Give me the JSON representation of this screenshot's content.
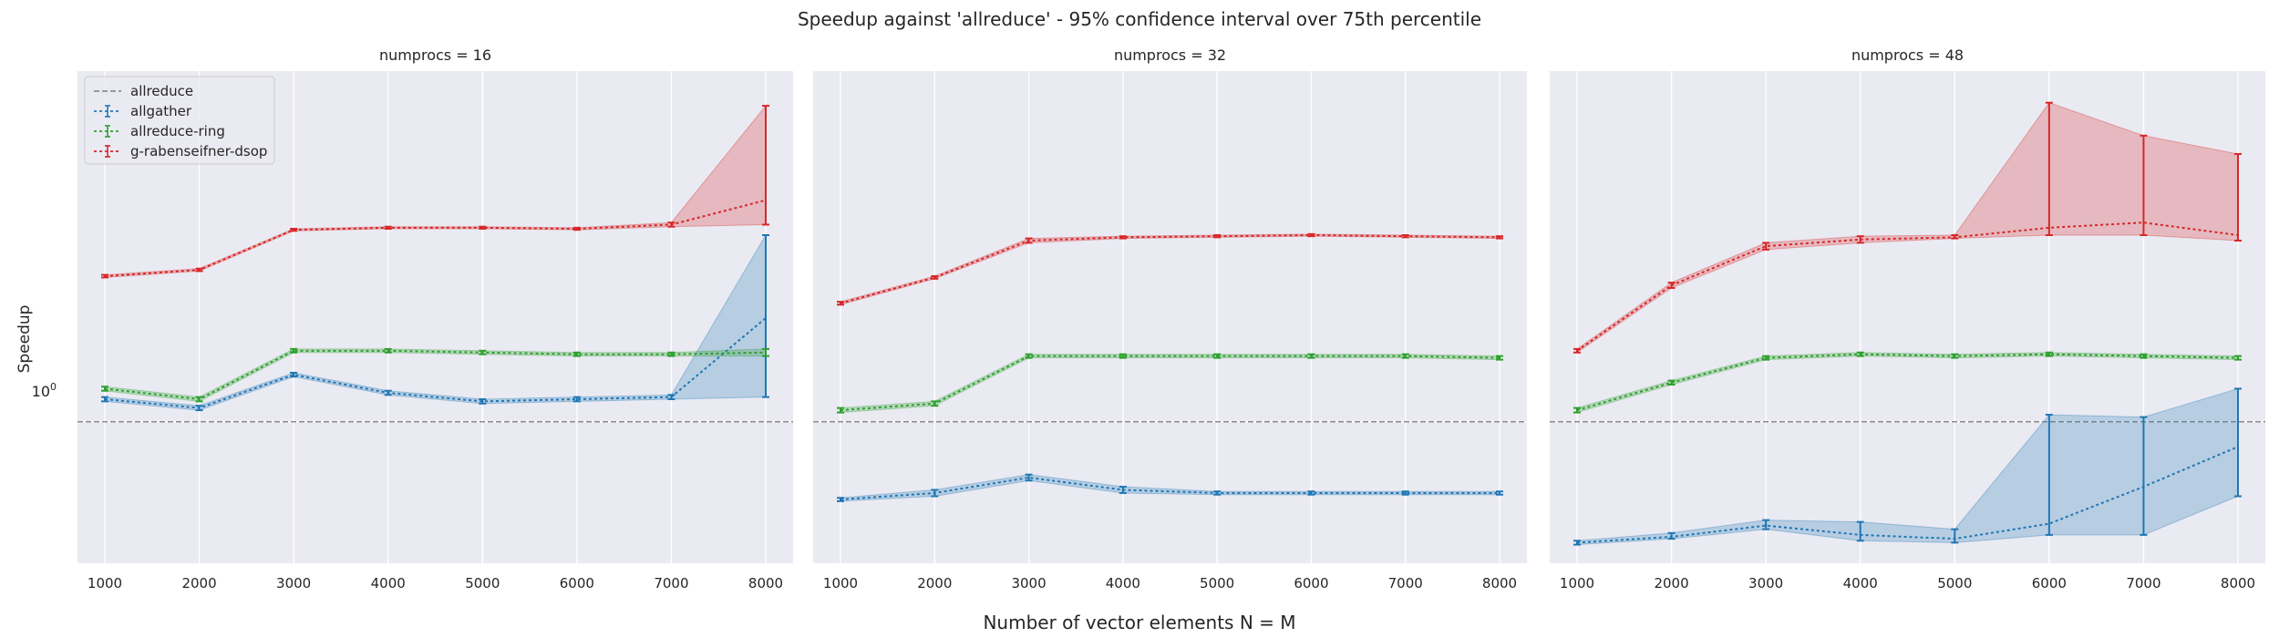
{
  "suptitle": "Speedup against 'allreduce' - 95% confidence interval over 75th percentile",
  "ylabel": "Speedup",
  "xlabel": "Number of vector elements N = M",
  "ytick_label": "10",
  "ytick_exponent": "0",
  "colors": {
    "background": "#eaeaf2",
    "grid": "#ffffff",
    "baseline": "#8c8c8c",
    "allgather": "#1f77b4",
    "allreduce-ring": "#2ca02c",
    "g-rabenseifner-dsop": "#d62728"
  },
  "legend": {
    "location": "upper left",
    "entries": [
      "allreduce",
      "allgather",
      "allreduce-ring",
      "g-rabenseifner-dsop"
    ]
  },
  "chart_data": [
    {
      "type": "line",
      "title": "numprocs = 16",
      "x": [
        1000,
        2000,
        3000,
        4000,
        5000,
        6000,
        7000,
        8000
      ],
      "yscale": "log",
      "ylim": [
        0.55,
        4.4
      ],
      "baseline": {
        "name": "allreduce",
        "value": 1.0
      },
      "series": [
        {
          "name": "allgather",
          "values": [
            1.1,
            1.06,
            1.22,
            1.13,
            1.09,
            1.1,
            1.11,
            1.55
          ],
          "ci_low": [
            1.09,
            1.05,
            1.21,
            1.12,
            1.08,
            1.09,
            1.1,
            1.11
          ],
          "ci_high": [
            1.11,
            1.07,
            1.23,
            1.14,
            1.1,
            1.11,
            1.12,
            2.2
          ]
        },
        {
          "name": "allreduce-ring",
          "values": [
            1.15,
            1.1,
            1.35,
            1.35,
            1.34,
            1.33,
            1.33,
            1.34
          ],
          "ci_low": [
            1.14,
            1.09,
            1.34,
            1.34,
            1.33,
            1.32,
            1.32,
            1.32
          ],
          "ci_high": [
            1.16,
            1.11,
            1.36,
            1.36,
            1.35,
            1.34,
            1.34,
            1.36
          ]
        },
        {
          "name": "g-rabenseifner-dsop",
          "values": [
            1.85,
            1.9,
            2.25,
            2.27,
            2.27,
            2.26,
            2.3,
            2.55
          ],
          "ci_low": [
            1.84,
            1.89,
            2.24,
            2.26,
            2.26,
            2.25,
            2.28,
            2.3
          ],
          "ci_high": [
            1.86,
            1.91,
            2.26,
            2.28,
            2.28,
            2.27,
            2.32,
            3.8
          ]
        }
      ]
    },
    {
      "type": "line",
      "title": "numprocs = 32",
      "x": [
        1000,
        2000,
        3000,
        4000,
        5000,
        6000,
        7000,
        8000
      ],
      "yscale": "log",
      "ylim": [
        0.55,
        4.4
      ],
      "baseline": {
        "name": "allreduce",
        "value": 1.0
      },
      "series": [
        {
          "name": "allgather",
          "values": [
            0.72,
            0.74,
            0.79,
            0.75,
            0.74,
            0.74,
            0.74,
            0.74
          ],
          "ci_low": [
            0.715,
            0.73,
            0.78,
            0.74,
            0.735,
            0.735,
            0.735,
            0.735
          ],
          "ci_high": [
            0.725,
            0.75,
            0.8,
            0.76,
            0.745,
            0.745,
            0.745,
            0.745
          ]
        },
        {
          "name": "allreduce-ring",
          "values": [
            1.05,
            1.08,
            1.32,
            1.32,
            1.32,
            1.32,
            1.32,
            1.31
          ],
          "ci_low": [
            1.04,
            1.07,
            1.31,
            1.31,
            1.31,
            1.31,
            1.31,
            1.3
          ],
          "ci_high": [
            1.06,
            1.09,
            1.33,
            1.33,
            1.33,
            1.33,
            1.33,
            1.32
          ]
        },
        {
          "name": "g-rabenseifner-dsop",
          "values": [
            1.65,
            1.84,
            2.15,
            2.18,
            2.19,
            2.2,
            2.19,
            2.18
          ],
          "ci_low": [
            1.64,
            1.83,
            2.13,
            2.17,
            2.18,
            2.19,
            2.18,
            2.17
          ],
          "ci_high": [
            1.66,
            1.85,
            2.17,
            2.19,
            2.2,
            2.21,
            2.2,
            2.19
          ]
        }
      ]
    },
    {
      "type": "line",
      "title": "numprocs = 48",
      "x": [
        1000,
        2000,
        3000,
        4000,
        5000,
        6000,
        7000,
        8000
      ],
      "yscale": "log",
      "ylim": [
        0.55,
        4.4
      ],
      "baseline": {
        "name": "allreduce",
        "value": 1.0
      },
      "series": [
        {
          "name": "allgather",
          "values": [
            0.6,
            0.615,
            0.645,
            0.62,
            0.61,
            0.65,
            0.76,
            0.9
          ],
          "ci_low": [
            0.595,
            0.61,
            0.635,
            0.605,
            0.6,
            0.62,
            0.62,
            0.73
          ],
          "ci_high": [
            0.605,
            0.625,
            0.66,
            0.655,
            0.635,
            1.03,
            1.02,
            1.15
          ]
        },
        {
          "name": "allreduce-ring",
          "values": [
            1.05,
            1.18,
            1.31,
            1.33,
            1.32,
            1.33,
            1.32,
            1.31
          ],
          "ci_low": [
            1.04,
            1.17,
            1.3,
            1.32,
            1.31,
            1.32,
            1.31,
            1.3
          ],
          "ci_high": [
            1.06,
            1.19,
            1.32,
            1.34,
            1.33,
            1.34,
            1.33,
            1.32
          ]
        },
        {
          "name": "g-rabenseifner-dsop",
          "values": [
            1.35,
            1.78,
            2.1,
            2.16,
            2.18,
            2.27,
            2.32,
            2.2
          ],
          "ci_low": [
            1.34,
            1.76,
            2.07,
            2.13,
            2.17,
            2.2,
            2.2,
            2.15
          ],
          "ci_high": [
            1.36,
            1.8,
            2.13,
            2.19,
            2.2,
            3.85,
            3.35,
            3.1
          ]
        }
      ]
    }
  ]
}
